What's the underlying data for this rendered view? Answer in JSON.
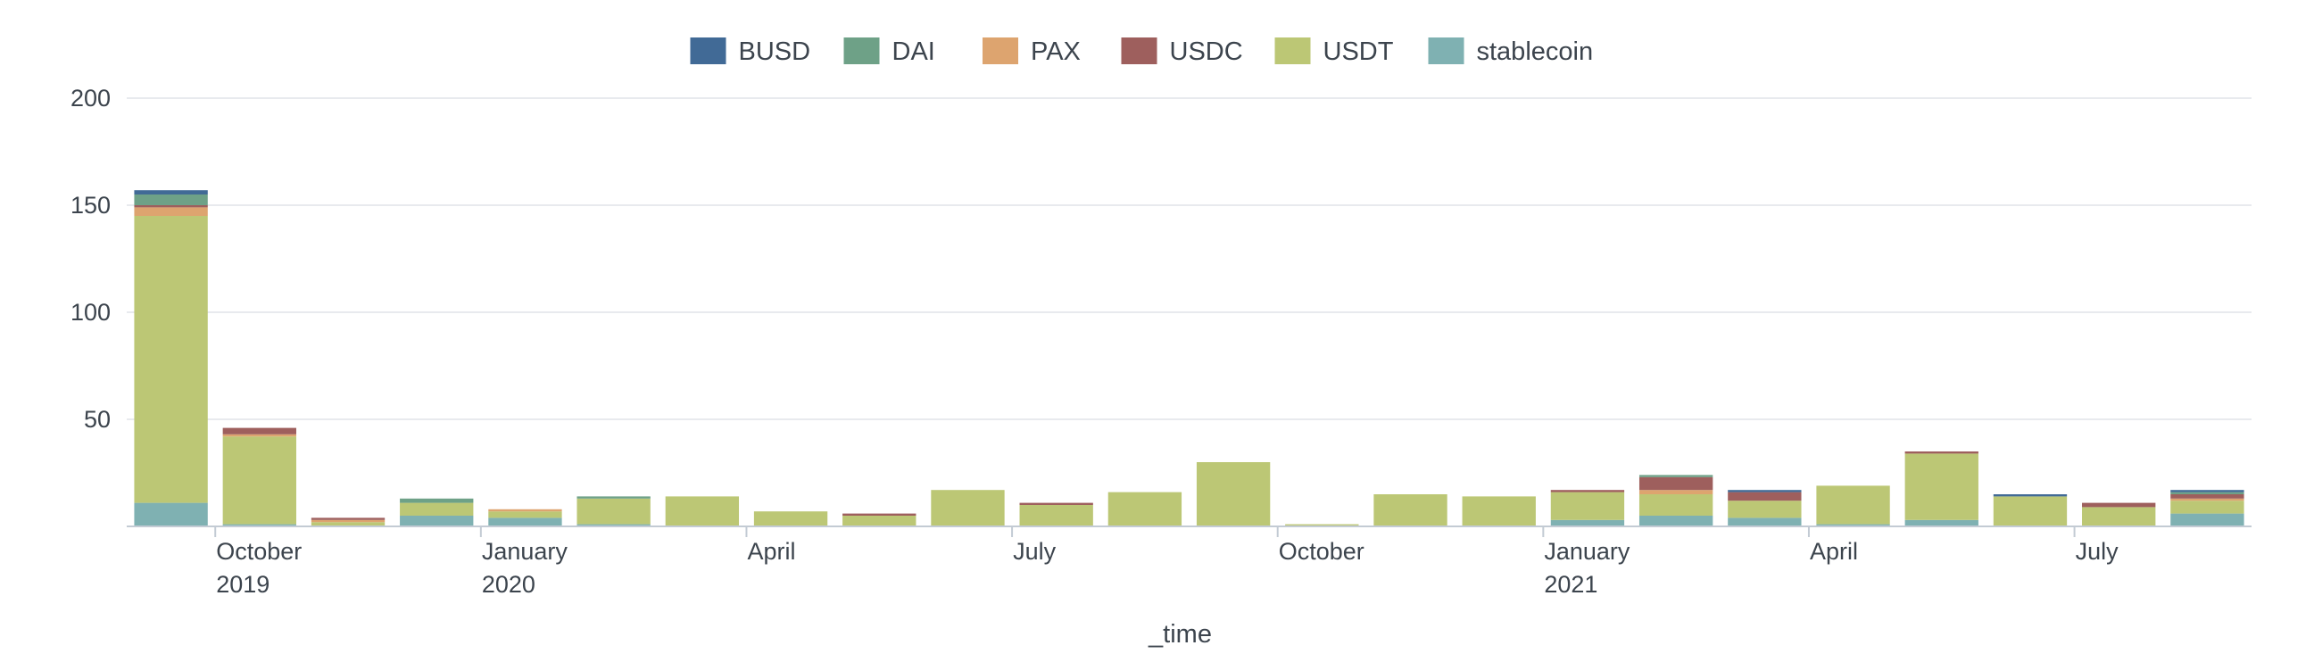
{
  "chart_data": {
    "type": "bar",
    "stacked": true,
    "xlabel": "_time",
    "ylabel": "",
    "ylim": [
      0,
      200
    ],
    "yticks": [
      50,
      100,
      150,
      200
    ],
    "grid": true,
    "legend_position": "top",
    "categories": [
      "2019-09",
      "2019-10",
      "2019-11",
      "2019-12",
      "2020-01",
      "2020-02",
      "2020-03",
      "2020-04",
      "2020-05",
      "2020-06",
      "2020-07",
      "2020-08",
      "2020-09",
      "2020-10",
      "2020-11",
      "2020-12",
      "2021-01",
      "2021-02",
      "2021-03",
      "2021-04",
      "2021-05",
      "2021-06",
      "2021-07",
      "2021-08"
    ],
    "x_tick_labels": [
      {
        "line1": "October",
        "line2": "2019",
        "category_index": 1
      },
      {
        "line1": "January",
        "line2": "2020",
        "category_index": 4
      },
      {
        "line1": "April",
        "line2": "",
        "category_index": 7
      },
      {
        "line1": "July",
        "line2": "",
        "category_index": 10
      },
      {
        "line1": "October",
        "line2": "",
        "category_index": 13
      },
      {
        "line1": "January",
        "line2": "2021",
        "category_index": 16
      },
      {
        "line1": "April",
        "line2": "",
        "category_index": 19
      },
      {
        "line1": "July",
        "line2": "",
        "category_index": 22
      }
    ],
    "series": [
      {
        "name": "stablecoin",
        "color": "#7fb1b2",
        "values": [
          11,
          1,
          0,
          5,
          4,
          1,
          0,
          0,
          0,
          0,
          0,
          0,
          0,
          0,
          0,
          0,
          3,
          5,
          4,
          1,
          3,
          0,
          0,
          6
        ]
      },
      {
        "name": "USDT",
        "color": "#bcc775",
        "values": [
          134,
          41,
          2,
          6,
          3,
          12,
          14,
          7,
          5,
          17,
          10,
          16,
          30,
          1,
          15,
          14,
          13,
          10,
          8,
          18,
          31,
          14,
          9,
          6
        ]
      },
      {
        "name": "PAX",
        "color": "#dda46f",
        "values": [
          4,
          1,
          1,
          0,
          1,
          0,
          0,
          0,
          0,
          0,
          0,
          0,
          0,
          0,
          0,
          0,
          0,
          2,
          0,
          0,
          0,
          0,
          0,
          1
        ]
      },
      {
        "name": "USDC",
        "color": "#9e5f5d",
        "values": [
          1,
          3,
          1,
          0,
          0,
          0,
          0,
          0,
          1,
          0,
          1,
          0,
          0,
          0,
          0,
          0,
          1,
          6,
          4,
          0,
          1,
          0,
          2,
          2
        ]
      },
      {
        "name": "DAI",
        "color": "#6ea187",
        "values": [
          5,
          0,
          0,
          2,
          0,
          1,
          0,
          0,
          0,
          0,
          0,
          0,
          0,
          0,
          0,
          0,
          0,
          1,
          0,
          0,
          0,
          0,
          0,
          1
        ]
      },
      {
        "name": "BUSD",
        "color": "#416a96",
        "values": [
          2,
          0,
          0,
          0,
          0,
          0,
          0,
          0,
          0,
          0,
          0,
          0,
          0,
          0,
          0,
          0,
          0,
          0,
          1,
          0,
          0,
          1,
          0,
          1
        ]
      }
    ],
    "legend_order": [
      "BUSD",
      "DAI",
      "PAX",
      "USDC",
      "USDT",
      "stablecoin"
    ]
  }
}
